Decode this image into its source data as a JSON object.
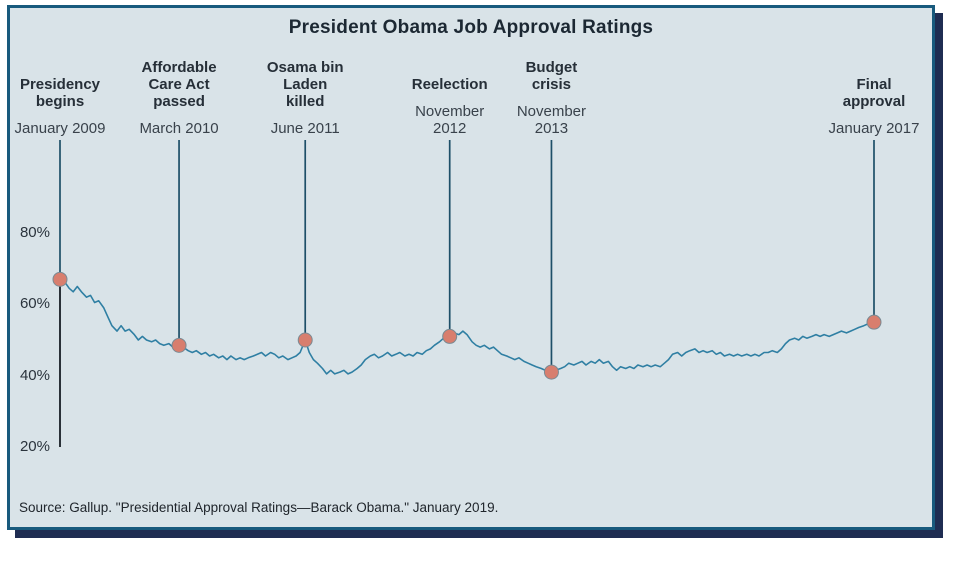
{
  "source_note": "Source: Gallup. \"Presidential Approval Ratings—Barack Obama.\" January 2019.",
  "colors": {
    "frame_border": "#185a7d",
    "frame_background": "#d9e3e8",
    "shadow": "#1f2d52",
    "line": "#2f7fa3",
    "point_fill": "#d87e6e",
    "point_stroke": "#7a8a93",
    "event_line": "#1d4f68",
    "axis_line": "#2a3138"
  },
  "chart_data": {
    "type": "line",
    "title": "President Obama Job Approval Ratings",
    "xlabel": "",
    "ylabel": "",
    "ylim": [
      20,
      80
    ],
    "yticks": [
      20,
      40,
      60,
      80
    ],
    "ytick_suffix": "%",
    "xlim": [
      2009.0,
      2017.3
    ],
    "legend": "none",
    "grid": false,
    "events": [
      {
        "label": "Presidency\nbegins",
        "date": "January 2009",
        "year": 2009.04,
        "value": 67,
        "line_extends_to_baseline": true
      },
      {
        "label": "Affordable\nCare Act\npassed",
        "date": "March 2010",
        "year": 2010.21,
        "value": 48.5
      },
      {
        "label": "Osama bin\nLaden\nkilled",
        "date": "June 2011",
        "year": 2011.45,
        "value": 50
      },
      {
        "label": "Reelection",
        "date": "November\n2012",
        "year": 2012.87,
        "value": 51
      },
      {
        "label": "Budget\ncrisis",
        "date": "November\n2013",
        "year": 2013.87,
        "value": 41
      },
      {
        "label": "Final\napproval",
        "date": "January 2017",
        "year": 2017.04,
        "value": 55
      }
    ],
    "series": [
      {
        "name": "Job approval (%)",
        "points": [
          [
            2009.04,
            67
          ],
          [
            2009.08,
            66.5
          ],
          [
            2009.13,
            64.5
          ],
          [
            2009.17,
            63.5
          ],
          [
            2009.21,
            65
          ],
          [
            2009.25,
            63.5
          ],
          [
            2009.3,
            62
          ],
          [
            2009.34,
            62.5
          ],
          [
            2009.38,
            60.5
          ],
          [
            2009.42,
            61
          ],
          [
            2009.47,
            59
          ],
          [
            2009.51,
            56.5
          ],
          [
            2009.55,
            54
          ],
          [
            2009.6,
            52.5
          ],
          [
            2009.64,
            54
          ],
          [
            2009.68,
            52.5
          ],
          [
            2009.72,
            53
          ],
          [
            2009.77,
            51.5
          ],
          [
            2009.81,
            50
          ],
          [
            2009.85,
            51
          ],
          [
            2009.89,
            50
          ],
          [
            2009.94,
            49.5
          ],
          [
            2009.98,
            50
          ],
          [
            2010.02,
            49
          ],
          [
            2010.06,
            48.5
          ],
          [
            2010.11,
            49
          ],
          [
            2010.15,
            48
          ],
          [
            2010.21,
            48.5
          ],
          [
            2010.25,
            48
          ],
          [
            2010.3,
            47
          ],
          [
            2010.34,
            46.5
          ],
          [
            2010.38,
            47
          ],
          [
            2010.43,
            46
          ],
          [
            2010.47,
            46.5
          ],
          [
            2010.51,
            45.5
          ],
          [
            2010.55,
            46
          ],
          [
            2010.6,
            45
          ],
          [
            2010.64,
            45.5
          ],
          [
            2010.68,
            44.5
          ],
          [
            2010.72,
            45.5
          ],
          [
            2010.77,
            44.5
          ],
          [
            2010.81,
            45
          ],
          [
            2010.85,
            44.5
          ],
          [
            2010.89,
            45
          ],
          [
            2010.94,
            45.5
          ],
          [
            2010.98,
            46
          ],
          [
            2011.02,
            46.5
          ],
          [
            2011.06,
            45.5
          ],
          [
            2011.11,
            46.5
          ],
          [
            2011.15,
            46
          ],
          [
            2011.19,
            45
          ],
          [
            2011.23,
            45.5
          ],
          [
            2011.28,
            44.5
          ],
          [
            2011.32,
            45
          ],
          [
            2011.36,
            45.5
          ],
          [
            2011.4,
            46.5
          ],
          [
            2011.45,
            50
          ],
          [
            2011.49,
            46.5
          ],
          [
            2011.53,
            44.5
          ],
          [
            2011.57,
            43.5
          ],
          [
            2011.62,
            42
          ],
          [
            2011.66,
            40.5
          ],
          [
            2011.7,
            41.5
          ],
          [
            2011.74,
            40.5
          ],
          [
            2011.79,
            41
          ],
          [
            2011.83,
            41.5
          ],
          [
            2011.87,
            40.5
          ],
          [
            2011.91,
            41
          ],
          [
            2011.96,
            42
          ],
          [
            2012.0,
            43
          ],
          [
            2012.04,
            44.5
          ],
          [
            2012.09,
            45.5
          ],
          [
            2012.13,
            46
          ],
          [
            2012.17,
            45
          ],
          [
            2012.21,
            45.5
          ],
          [
            2012.26,
            46.5
          ],
          [
            2012.3,
            45.5
          ],
          [
            2012.34,
            46
          ],
          [
            2012.38,
            46.5
          ],
          [
            2012.43,
            45.5
          ],
          [
            2012.47,
            46
          ],
          [
            2012.51,
            45.5
          ],
          [
            2012.55,
            46.5
          ],
          [
            2012.6,
            46
          ],
          [
            2012.64,
            47
          ],
          [
            2012.68,
            47.5
          ],
          [
            2012.72,
            48.5
          ],
          [
            2012.77,
            49.5
          ],
          [
            2012.81,
            50.5
          ],
          [
            2012.87,
            51
          ],
          [
            2012.91,
            52
          ],
          [
            2012.96,
            51.5
          ],
          [
            2013.0,
            52.5
          ],
          [
            2013.04,
            51.5
          ],
          [
            2013.09,
            49.5
          ],
          [
            2013.13,
            48.5
          ],
          [
            2013.17,
            48
          ],
          [
            2013.21,
            48.5
          ],
          [
            2013.26,
            47.5
          ],
          [
            2013.3,
            48
          ],
          [
            2013.34,
            47
          ],
          [
            2013.38,
            46
          ],
          [
            2013.43,
            45.5
          ],
          [
            2013.47,
            45
          ],
          [
            2013.51,
            44.5
          ],
          [
            2013.55,
            45
          ],
          [
            2013.6,
            44
          ],
          [
            2013.64,
            43.5
          ],
          [
            2013.68,
            43
          ],
          [
            2013.72,
            42.5
          ],
          [
            2013.77,
            42
          ],
          [
            2013.81,
            41.5
          ],
          [
            2013.87,
            41
          ],
          [
            2013.91,
            41.5
          ],
          [
            2013.96,
            42
          ],
          [
            2014.0,
            42.5
          ],
          [
            2014.04,
            43.5
          ],
          [
            2014.09,
            43
          ],
          [
            2014.13,
            43.5
          ],
          [
            2014.17,
            44
          ],
          [
            2014.21,
            43
          ],
          [
            2014.26,
            44
          ],
          [
            2014.3,
            43.5
          ],
          [
            2014.34,
            44.5
          ],
          [
            2014.38,
            43.5
          ],
          [
            2014.43,
            44
          ],
          [
            2014.47,
            42.5
          ],
          [
            2014.51,
            41.5
          ],
          [
            2014.55,
            42.5
          ],
          [
            2014.6,
            42
          ],
          [
            2014.64,
            42.5
          ],
          [
            2014.68,
            42
          ],
          [
            2014.72,
            43
          ],
          [
            2014.77,
            42.5
          ],
          [
            2014.81,
            43
          ],
          [
            2014.85,
            42.5
          ],
          [
            2014.89,
            43
          ],
          [
            2014.94,
            42.5
          ],
          [
            2014.98,
            43.5
          ],
          [
            2015.02,
            44.5
          ],
          [
            2015.06,
            46
          ],
          [
            2015.11,
            46.5
          ],
          [
            2015.15,
            45.5
          ],
          [
            2015.19,
            46.5
          ],
          [
            2015.23,
            47
          ],
          [
            2015.28,
            47.5
          ],
          [
            2015.32,
            46.5
          ],
          [
            2015.36,
            47
          ],
          [
            2015.4,
            46.5
          ],
          [
            2015.45,
            47
          ],
          [
            2015.49,
            46
          ],
          [
            2015.53,
            46.5
          ],
          [
            2015.57,
            45.5
          ],
          [
            2015.62,
            46
          ],
          [
            2015.66,
            45.5
          ],
          [
            2015.7,
            46
          ],
          [
            2015.74,
            45.5
          ],
          [
            2015.79,
            46
          ],
          [
            2015.83,
            45.5
          ],
          [
            2015.87,
            46
          ],
          [
            2015.91,
            45.5
          ],
          [
            2015.96,
            46.5
          ],
          [
            2016.0,
            46.5
          ],
          [
            2016.04,
            47
          ],
          [
            2016.09,
            46.5
          ],
          [
            2016.13,
            47.5
          ],
          [
            2016.17,
            49
          ],
          [
            2016.21,
            50
          ],
          [
            2016.26,
            50.5
          ],
          [
            2016.3,
            50
          ],
          [
            2016.34,
            51
          ],
          [
            2016.38,
            50.5
          ],
          [
            2016.43,
            51
          ],
          [
            2016.47,
            51.5
          ],
          [
            2016.51,
            51
          ],
          [
            2016.55,
            51.5
          ],
          [
            2016.6,
            51
          ],
          [
            2016.64,
            51.5
          ],
          [
            2016.68,
            52
          ],
          [
            2016.72,
            52.5
          ],
          [
            2016.77,
            52
          ],
          [
            2016.81,
            52.5
          ],
          [
            2016.85,
            53
          ],
          [
            2016.89,
            53.5
          ],
          [
            2016.94,
            54
          ],
          [
            2016.98,
            54.5
          ],
          [
            2017.04,
            55
          ]
        ]
      }
    ]
  }
}
